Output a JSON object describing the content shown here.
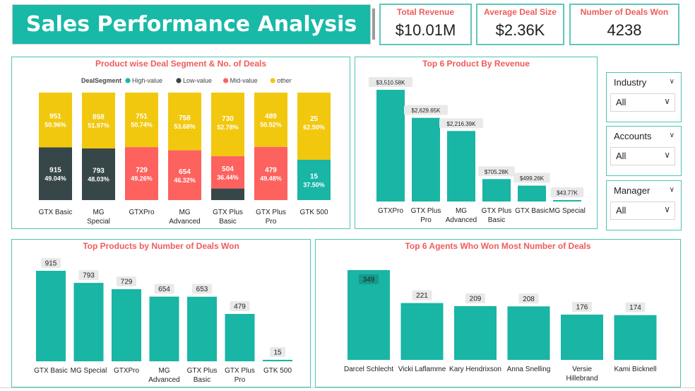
{
  "header": {
    "title": "Sales Performance Analysis"
  },
  "kpis": [
    {
      "label": "Total Revenue",
      "value": "$10.01M"
    },
    {
      "label": "Average Deal Size",
      "value": "$2.36K"
    },
    {
      "label": "Number of Deals Won",
      "value": "4238"
    }
  ],
  "slicers": [
    {
      "label": "Industry",
      "value": "All"
    },
    {
      "label": "Accounts",
      "value": "All"
    },
    {
      "label": "Manager",
      "value": "All"
    }
  ],
  "colors": {
    "teal": "#19b5a5",
    "dark": "#374649",
    "red": "#fd625e",
    "yellow": "#f2c80f",
    "title_red": "#ef5b5b"
  },
  "chart_data": [
    {
      "type": "bar",
      "stacked": true,
      "percent": true,
      "title": "Product wise Deal Segment & No. of Deals",
      "legend_title": "DealSegment",
      "legend_position": "top",
      "categories": [
        "GTX Basic",
        "MG Special",
        "GTXPro",
        "MG Advanced",
        "GTX Plus Basic",
        "GTX Plus Pro",
        "GTK 500"
      ],
      "series": [
        {
          "name": "High-value",
          "color": "#19b5a5",
          "values": [
            0,
            0,
            0,
            0,
            0,
            0,
            15
          ],
          "labels": [
            "",
            "",
            "",
            "",
            "",
            "",
            "15"
          ],
          "pct_labels": [
            "",
            "",
            "",
            "",
            "",
            "",
            "37.50%"
          ]
        },
        {
          "name": "Low-value",
          "color": "#374649",
          "values": [
            915,
            793,
            0,
            0,
            0,
            0,
            0
          ],
          "labels": [
            "915",
            "793",
            "",
            "",
            "",
            "",
            ""
          ],
          "pct_labels": [
            "49.04%",
            "48.03%",
            "",
            "",
            "",
            "",
            ""
          ]
        },
        {
          "name": "Mid-value",
          "color": "#fd625e",
          "values": [
            0,
            0,
            729,
            654,
            504,
            479,
            0
          ],
          "labels": [
            "",
            "",
            "729",
            "654",
            "504",
            "479",
            ""
          ],
          "pct_labels": [
            "",
            "",
            "49.26%",
            "46.32%",
            "36.44%",
            "49.48%",
            ""
          ]
        },
        {
          "name": "other",
          "color": "#f2c80f",
          "values": [
            951,
            858,
            751,
            758,
            730,
            489,
            25
          ],
          "labels": [
            "951",
            "858",
            "751",
            "758",
            "730",
            "489",
            "25"
          ],
          "pct_labels": [
            "50.96%",
            "51.97%",
            "50.74%",
            "53.68%",
            "52.78%",
            "50.52%",
            "62.50%"
          ]
        }
      ],
      "extra_segments": [
        {
          "category": "GTX Plus Basic",
          "color": "#374649",
          "pct": 0.1078
        }
      ]
    },
    {
      "type": "bar",
      "title": "Top 6 Product By Revenue",
      "categories": [
        "GTXPro",
        "GTX Plus Pro",
        "MG Advanced",
        "GTX Plus Basic",
        "GTX Basic",
        "MG Special"
      ],
      "values": [
        3510.58,
        2629.65,
        2216.39,
        705.28,
        499.26,
        43.77
      ],
      "labels": [
        "$3,510.58K",
        "$2,629.65K",
        "$2,216.39K",
        "$705.28K",
        "$499.26K",
        "$43.77K"
      ],
      "ylim": [
        0,
        3600
      ]
    },
    {
      "type": "bar",
      "title": "Top Products by Number of Deals Won",
      "categories": [
        "GTX Basic",
        "MG Special",
        "GTXPro",
        "MG Advanced",
        "GTX Plus Basic",
        "GTX Plus Pro",
        "GTK 500"
      ],
      "values": [
        915,
        793,
        729,
        654,
        653,
        479,
        15
      ],
      "labels": [
        "915",
        "793",
        "729",
        "654",
        "653",
        "479",
        "15"
      ],
      "ylim": [
        0,
        915
      ]
    },
    {
      "type": "bar",
      "title": "Top 6 Agents Who Won Most Number of Deals",
      "categories": [
        "Darcel Schlecht",
        "Vicki Laflamme",
        "Kary Hendrixson",
        "Anna Snelling",
        "Versie Hillebrand",
        "Kami Bicknell"
      ],
      "values": [
        349,
        221,
        209,
        208,
        176,
        174
      ],
      "labels": [
        "349",
        "221",
        "209",
        "208",
        "176",
        "174"
      ],
      "ylim": [
        0,
        349
      ]
    }
  ]
}
